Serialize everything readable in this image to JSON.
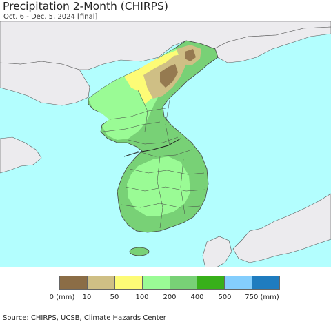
{
  "title": "Precipitation 2-Month (CHIRPS)",
  "subtitle": "Oct. 6 - Dec. 5, 2024 [final]",
  "source": "Source: CHIRPS, UCSB, Climate Hazards Center",
  "colors": {
    "ocean": "#b3fefe",
    "foreign_land": "#ecebee",
    "border": "#444444"
  },
  "legend": {
    "colors": [
      "#8b6d46",
      "#cfbf85",
      "#fdfb76",
      "#9afb95",
      "#78d176",
      "#38b01a",
      "#84cefd",
      "#1f7cbf"
    ],
    "tick_labels": [
      "0 (mm)",
      "10",
      "50",
      "100",
      "200",
      "400",
      "500",
      "750 (mm)"
    ]
  }
}
